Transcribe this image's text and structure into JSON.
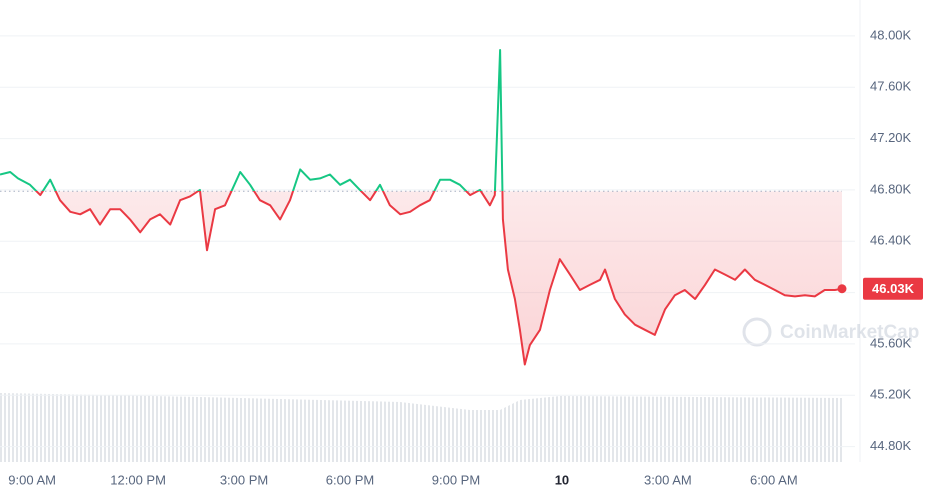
{
  "chart_data": {
    "type": "line",
    "x": [
      8.09,
      8.38,
      8.6,
      8.94,
      9.23,
      9.51,
      9.79,
      10.08,
      10.36,
      10.64,
      10.92,
      11.21,
      11.49,
      11.77,
      12.06,
      12.34,
      12.62,
      12.91,
      13.19,
      13.47,
      13.75,
      13.95,
      14.18,
      14.46,
      14.89,
      15.17,
      15.45,
      15.74,
      16.02,
      16.3,
      16.59,
      16.87,
      17.15,
      17.43,
      17.72,
      18,
      18.28,
      18.57,
      18.85,
      19.13,
      19.42,
      19.7,
      19.98,
      20.26,
      20.55,
      20.83,
      21.11,
      21.4,
      21.68,
      21.96,
      22.1,
      22.25,
      22.33,
      22.47,
      22.67,
      22.81,
      22.95,
      23.09,
      23.38,
      23.66,
      23.94,
      24.23,
      24.51,
      24.79,
      25.08,
      25.22,
      25.5,
      25.78,
      26.07,
      26.35,
      26.63,
      26.92,
      27.2,
      27.48,
      27.77,
      28.05,
      28.33,
      28.62,
      28.9,
      29.18,
      29.46,
      29.75,
      30.03,
      30.31,
      30.6,
      30.88,
      31.16,
      31.44,
      31.73,
      31.93
    ],
    "series": [
      {
        "color_up": "#16c784",
        "color_down": "#ea3943",
        "values": [
          46920,
          46940,
          46890,
          46840,
          46760,
          46880,
          46720,
          46630,
          46610,
          46650,
          46530,
          46650,
          46650,
          46570,
          46470,
          46570,
          46610,
          46530,
          46720,
          46750,
          46800,
          46330,
          46650,
          46680,
          46940,
          46840,
          46720,
          46680,
          46570,
          46720,
          46960,
          46880,
          46890,
          46920,
          46840,
          46880,
          46800,
          46720,
          46840,
          46680,
          46610,
          46630,
          46680,
          46720,
          46880,
          46880,
          46840,
          46760,
          46800,
          46680,
          46760,
          47890,
          46570,
          46180,
          45950,
          45710,
          45440,
          45590,
          45710,
          46020,
          46260,
          46140,
          46020,
          46060,
          46100,
          46180,
          45950,
          45830,
          45750,
          45710,
          45670,
          45870,
          45980,
          46020,
          45950,
          46060,
          46180,
          46140,
          46100,
          46180,
          46100,
          46060,
          46020,
          45980,
          45970,
          45980,
          45970,
          46020,
          46020,
          46030
        ]
      }
    ],
    "baseline": 46790,
    "current_price": {
      "value": 46030,
      "label": "46.03K"
    },
    "watermark": "CoinMarketCap",
    "xlim": [
      8.09,
      31.93
    ],
    "xticks": [
      {
        "value": 9,
        "label": "9:00 AM"
      },
      {
        "value": 12,
        "label": "12:00 PM"
      },
      {
        "value": 15,
        "label": "3:00 PM"
      },
      {
        "value": 18,
        "label": "6:00 PM"
      },
      {
        "value": 21,
        "label": "9:00 PM"
      },
      {
        "value": 24,
        "label": "10"
      },
      {
        "value": 27,
        "label": "3:00 AM"
      },
      {
        "value": 30,
        "label": "6:00 AM"
      }
    ],
    "ylim": [
      44680,
      48280
    ],
    "yticks": [
      {
        "value": 44800,
        "label": "44.80K"
      },
      {
        "value": 45200,
        "label": "45.20K"
      },
      {
        "value": 45600,
        "label": "45.60K"
      },
      {
        "value": 46000,
        "label": "46.00K"
      },
      {
        "value": 46400,
        "label": "46.40K"
      },
      {
        "value": 46800,
        "label": "46.80K"
      },
      {
        "value": 47200,
        "label": "47.20K"
      },
      {
        "value": 47600,
        "label": "47.60K"
      },
      {
        "value": 48000,
        "label": "48.00K"
      }
    ],
    "grid": true
  }
}
